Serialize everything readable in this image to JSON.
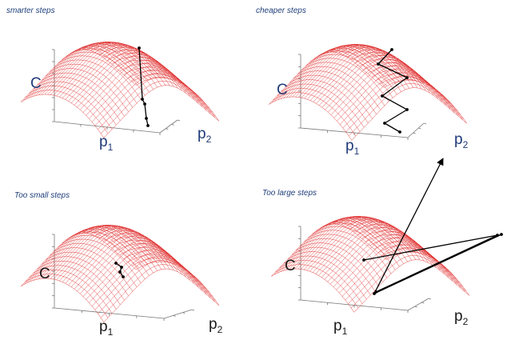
{
  "panels": [
    {
      "id": "smarter",
      "caption": "smarter steps",
      "axis_c": "C",
      "axis_p1": "p",
      "axis_p1_sub": "1",
      "axis_p2": "p",
      "axis_p2_sub": "2",
      "label_color": "#1f3a78",
      "mesh_color": "#e03030",
      "path_color": "#000000"
    },
    {
      "id": "cheaper",
      "caption": "cheaper steps",
      "axis_c": "C",
      "axis_p1": "p",
      "axis_p1_sub": "1",
      "axis_p2": "p",
      "axis_p2_sub": "2",
      "label_color": "#1f3a78",
      "mesh_color": "#e03030",
      "path_color": "#000000"
    },
    {
      "id": "too-small",
      "caption": "Too small steps",
      "axis_c": "C",
      "axis_p1": "p",
      "axis_p1_sub": "1",
      "axis_p2": "p",
      "axis_p2_sub": "2",
      "label_color": "#1a1a1a",
      "mesh_color": "#e03030",
      "path_color": "#000000"
    },
    {
      "id": "too-large",
      "caption": "Too large steps",
      "axis_c": "C",
      "axis_p1": "p",
      "axis_p1_sub": "1",
      "axis_p2": "p",
      "axis_p2_sub": "2",
      "label_color": "#1a1a1a",
      "mesh_color": "#e03030",
      "path_color": "#000000"
    }
  ]
}
